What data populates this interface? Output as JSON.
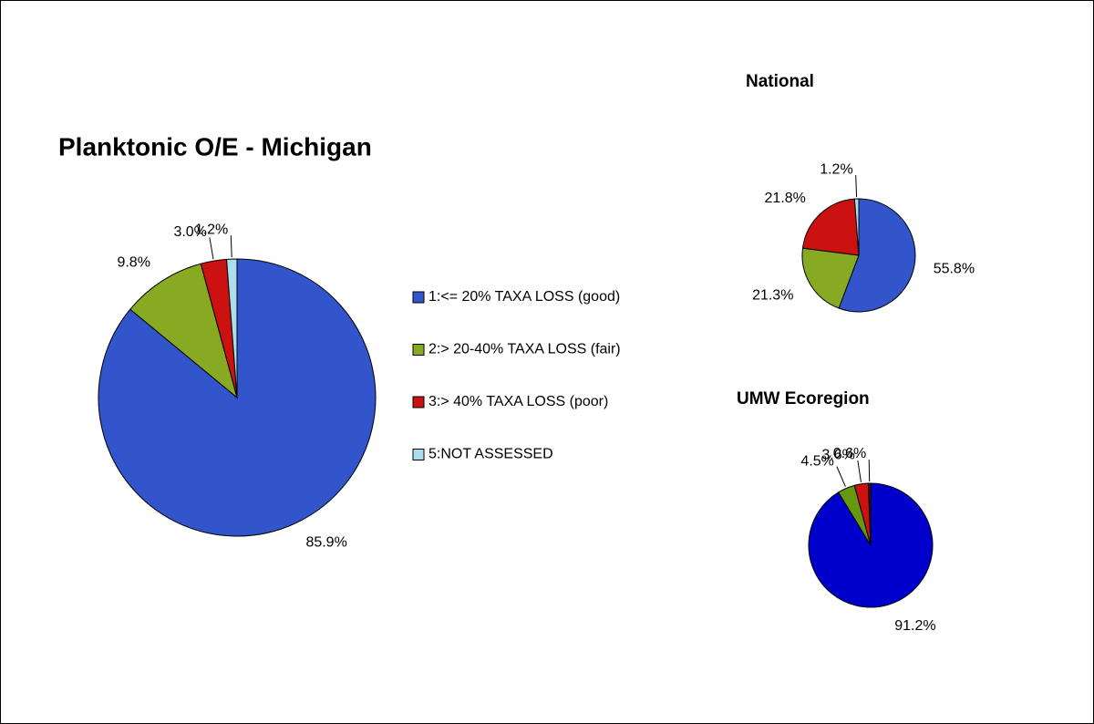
{
  "chart_data": [
    {
      "type": "pie",
      "title": "Planktonic O/E - Michigan",
      "categories": [
        "1:<= 20% TAXA LOSS (good)",
        "2:> 20-40% TAXA LOSS (fair)",
        "3:> 40% TAXA LOSS (poor)",
        "5:NOT ASSESSED"
      ],
      "values": [
        85.9,
        9.8,
        3.0,
        1.2
      ],
      "value_labels": [
        "85.9%",
        "9.8%",
        "3.0%",
        "1.2%"
      ],
      "colors": [
        "#3355cc",
        "#88aa22",
        "#cc1111",
        "#aaddee"
      ],
      "legend": "right"
    },
    {
      "type": "pie",
      "title": "National",
      "values": [
        55.8,
        21.3,
        21.8,
        1.2
      ],
      "value_labels": [
        "55.8%",
        "21.3%",
        "21.8%",
        "1.2%"
      ],
      "colors": [
        "#3355cc",
        "#88aa22",
        "#cc1111",
        "#aaddee"
      ]
    },
    {
      "type": "pie",
      "title": "UMW Ecoregion",
      "values": [
        91.2,
        4.5,
        3.6,
        0.6
      ],
      "value_labels": [
        "91.2%",
        "4.5%",
        "3.6%",
        "0.6%"
      ],
      "colors": [
        "#0000cc",
        "#669911",
        "#cc1111",
        "#661111"
      ]
    }
  ]
}
